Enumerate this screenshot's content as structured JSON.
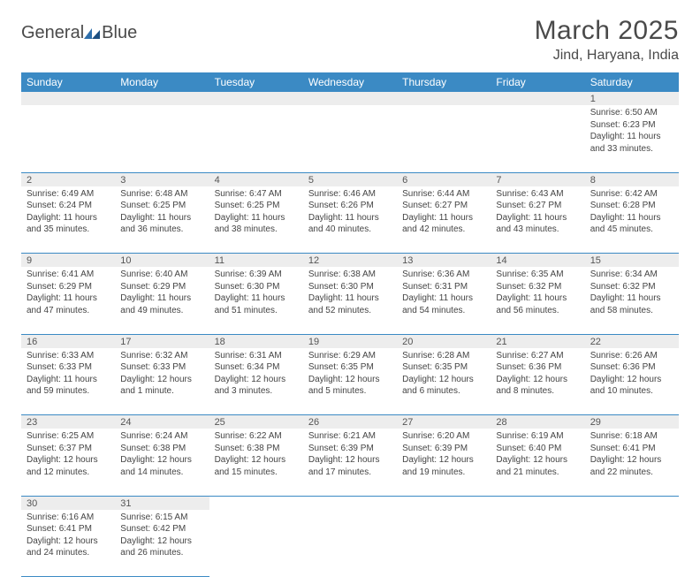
{
  "logo": {
    "text_a": "General",
    "text_b": "Blue"
  },
  "header": {
    "title": "March 2025",
    "location": "Jind, Haryana, India"
  },
  "colors": {
    "header_bg": "#3b8ac4",
    "header_text": "#ffffff",
    "daynum_bg": "#ededed",
    "rule": "#3b8ac4",
    "body_text": "#444444"
  },
  "weekdays": [
    "Sunday",
    "Monday",
    "Tuesday",
    "Wednesday",
    "Thursday",
    "Friday",
    "Saturday"
  ],
  "weeks": [
    [
      null,
      null,
      null,
      null,
      null,
      null,
      {
        "d": "1",
        "sr": "Sunrise: 6:50 AM",
        "ss": "Sunset: 6:23 PM",
        "dl1": "Daylight: 11 hours",
        "dl2": "and 33 minutes."
      }
    ],
    [
      {
        "d": "2",
        "sr": "Sunrise: 6:49 AM",
        "ss": "Sunset: 6:24 PM",
        "dl1": "Daylight: 11 hours",
        "dl2": "and 35 minutes."
      },
      {
        "d": "3",
        "sr": "Sunrise: 6:48 AM",
        "ss": "Sunset: 6:25 PM",
        "dl1": "Daylight: 11 hours",
        "dl2": "and 36 minutes."
      },
      {
        "d": "4",
        "sr": "Sunrise: 6:47 AM",
        "ss": "Sunset: 6:25 PM",
        "dl1": "Daylight: 11 hours",
        "dl2": "and 38 minutes."
      },
      {
        "d": "5",
        "sr": "Sunrise: 6:46 AM",
        "ss": "Sunset: 6:26 PM",
        "dl1": "Daylight: 11 hours",
        "dl2": "and 40 minutes."
      },
      {
        "d": "6",
        "sr": "Sunrise: 6:44 AM",
        "ss": "Sunset: 6:27 PM",
        "dl1": "Daylight: 11 hours",
        "dl2": "and 42 minutes."
      },
      {
        "d": "7",
        "sr": "Sunrise: 6:43 AM",
        "ss": "Sunset: 6:27 PM",
        "dl1": "Daylight: 11 hours",
        "dl2": "and 43 minutes."
      },
      {
        "d": "8",
        "sr": "Sunrise: 6:42 AM",
        "ss": "Sunset: 6:28 PM",
        "dl1": "Daylight: 11 hours",
        "dl2": "and 45 minutes."
      }
    ],
    [
      {
        "d": "9",
        "sr": "Sunrise: 6:41 AM",
        "ss": "Sunset: 6:29 PM",
        "dl1": "Daylight: 11 hours",
        "dl2": "and 47 minutes."
      },
      {
        "d": "10",
        "sr": "Sunrise: 6:40 AM",
        "ss": "Sunset: 6:29 PM",
        "dl1": "Daylight: 11 hours",
        "dl2": "and 49 minutes."
      },
      {
        "d": "11",
        "sr": "Sunrise: 6:39 AM",
        "ss": "Sunset: 6:30 PM",
        "dl1": "Daylight: 11 hours",
        "dl2": "and 51 minutes."
      },
      {
        "d": "12",
        "sr": "Sunrise: 6:38 AM",
        "ss": "Sunset: 6:30 PM",
        "dl1": "Daylight: 11 hours",
        "dl2": "and 52 minutes."
      },
      {
        "d": "13",
        "sr": "Sunrise: 6:36 AM",
        "ss": "Sunset: 6:31 PM",
        "dl1": "Daylight: 11 hours",
        "dl2": "and 54 minutes."
      },
      {
        "d": "14",
        "sr": "Sunrise: 6:35 AM",
        "ss": "Sunset: 6:32 PM",
        "dl1": "Daylight: 11 hours",
        "dl2": "and 56 minutes."
      },
      {
        "d": "15",
        "sr": "Sunrise: 6:34 AM",
        "ss": "Sunset: 6:32 PM",
        "dl1": "Daylight: 11 hours",
        "dl2": "and 58 minutes."
      }
    ],
    [
      {
        "d": "16",
        "sr": "Sunrise: 6:33 AM",
        "ss": "Sunset: 6:33 PM",
        "dl1": "Daylight: 11 hours",
        "dl2": "and 59 minutes."
      },
      {
        "d": "17",
        "sr": "Sunrise: 6:32 AM",
        "ss": "Sunset: 6:33 PM",
        "dl1": "Daylight: 12 hours",
        "dl2": "and 1 minute."
      },
      {
        "d": "18",
        "sr": "Sunrise: 6:31 AM",
        "ss": "Sunset: 6:34 PM",
        "dl1": "Daylight: 12 hours",
        "dl2": "and 3 minutes."
      },
      {
        "d": "19",
        "sr": "Sunrise: 6:29 AM",
        "ss": "Sunset: 6:35 PM",
        "dl1": "Daylight: 12 hours",
        "dl2": "and 5 minutes."
      },
      {
        "d": "20",
        "sr": "Sunrise: 6:28 AM",
        "ss": "Sunset: 6:35 PM",
        "dl1": "Daylight: 12 hours",
        "dl2": "and 6 minutes."
      },
      {
        "d": "21",
        "sr": "Sunrise: 6:27 AM",
        "ss": "Sunset: 6:36 PM",
        "dl1": "Daylight: 12 hours",
        "dl2": "and 8 minutes."
      },
      {
        "d": "22",
        "sr": "Sunrise: 6:26 AM",
        "ss": "Sunset: 6:36 PM",
        "dl1": "Daylight: 12 hours",
        "dl2": "and 10 minutes."
      }
    ],
    [
      {
        "d": "23",
        "sr": "Sunrise: 6:25 AM",
        "ss": "Sunset: 6:37 PM",
        "dl1": "Daylight: 12 hours",
        "dl2": "and 12 minutes."
      },
      {
        "d": "24",
        "sr": "Sunrise: 6:24 AM",
        "ss": "Sunset: 6:38 PM",
        "dl1": "Daylight: 12 hours",
        "dl2": "and 14 minutes."
      },
      {
        "d": "25",
        "sr": "Sunrise: 6:22 AM",
        "ss": "Sunset: 6:38 PM",
        "dl1": "Daylight: 12 hours",
        "dl2": "and 15 minutes."
      },
      {
        "d": "26",
        "sr": "Sunrise: 6:21 AM",
        "ss": "Sunset: 6:39 PM",
        "dl1": "Daylight: 12 hours",
        "dl2": "and 17 minutes."
      },
      {
        "d": "27",
        "sr": "Sunrise: 6:20 AM",
        "ss": "Sunset: 6:39 PM",
        "dl1": "Daylight: 12 hours",
        "dl2": "and 19 minutes."
      },
      {
        "d": "28",
        "sr": "Sunrise: 6:19 AM",
        "ss": "Sunset: 6:40 PM",
        "dl1": "Daylight: 12 hours",
        "dl2": "and 21 minutes."
      },
      {
        "d": "29",
        "sr": "Sunrise: 6:18 AM",
        "ss": "Sunset: 6:41 PM",
        "dl1": "Daylight: 12 hours",
        "dl2": "and 22 minutes."
      }
    ],
    [
      {
        "d": "30",
        "sr": "Sunrise: 6:16 AM",
        "ss": "Sunset: 6:41 PM",
        "dl1": "Daylight: 12 hours",
        "dl2": "and 24 minutes."
      },
      {
        "d": "31",
        "sr": "Sunrise: 6:15 AM",
        "ss": "Sunset: 6:42 PM",
        "dl1": "Daylight: 12 hours",
        "dl2": "and 26 minutes."
      },
      null,
      null,
      null,
      null,
      null
    ]
  ]
}
